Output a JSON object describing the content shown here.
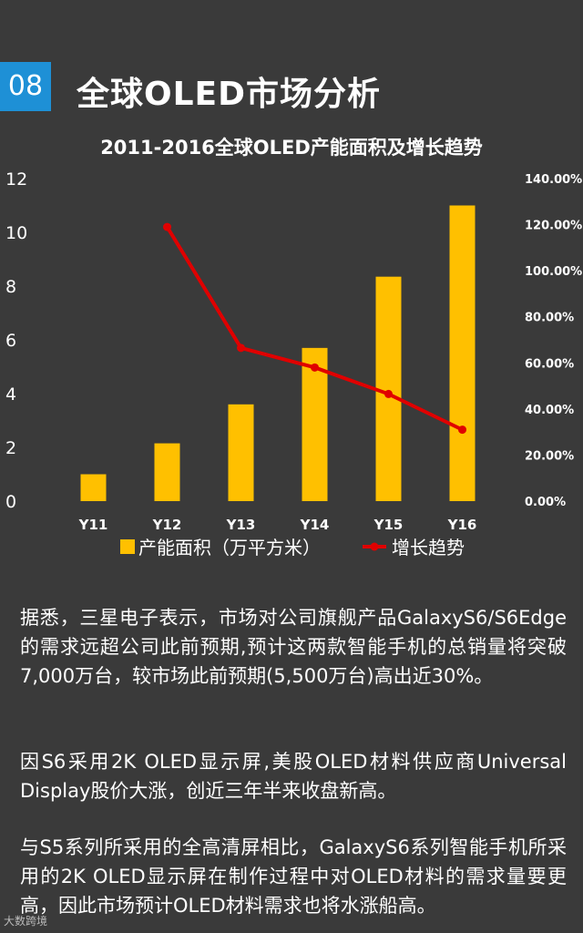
{
  "header": {
    "badge_number": "08",
    "page_title": "全球OLED市场分析",
    "accent_color": "#1e90d6"
  },
  "chart_data": {
    "type": "bar+line",
    "title": "2011-2016全球OLED产能面积及增长趋势",
    "categories": [
      "Y11",
      "Y12",
      "Y13",
      "Y14",
      "Y15",
      "Y16"
    ],
    "series": [
      {
        "name": "产能面积（万平方米）",
        "type": "bar",
        "axis": "left",
        "color": "#ffc000",
        "values": [
          1.0,
          2.15,
          3.6,
          5.7,
          8.35,
          11.0
        ]
      },
      {
        "name": "增长趋势",
        "type": "line",
        "axis": "right",
        "color": "#e00000",
        "values": [
          null,
          119.0,
          66.5,
          58.0,
          46.5,
          31.0
        ]
      }
    ],
    "ylim_left": [
      0,
      12
    ],
    "yticks_left": [
      "0",
      "2",
      "4",
      "6",
      "8",
      "10",
      "12"
    ],
    "ylim_right": [
      0,
      140
    ],
    "yticks_right": [
      "0.00%",
      "20.00%",
      "40.00%",
      "60.00%",
      "80.00%",
      "100.00%",
      "120.00%",
      "140.00%"
    ],
    "grid": false,
    "legend": "bottom"
  },
  "paragraphs": [
    "据悉，三星电子表示，市场对公司旗舰产品GalaxyS6/S6Edge的需求远超公司此前预期,预计这两款智能手机的总销量将突破7,000万台，较市场此前预期(5,500万台)高出近30%。",
    "因S6采用2K OLED显示屏,美股OLED材料供应商Universal Display股价大涨，创近三年半来收盘新高。",
    "与S5系列所采用的全高清屏相比，GalaxyS6系列智能手机所采用的2K OLED显示屏在制作过程中对OLED材料的需求量要更高，因此市场预计OLED材料需求也将水涨船高。"
  ],
  "footer": {
    "watermark": "大数跨境"
  }
}
